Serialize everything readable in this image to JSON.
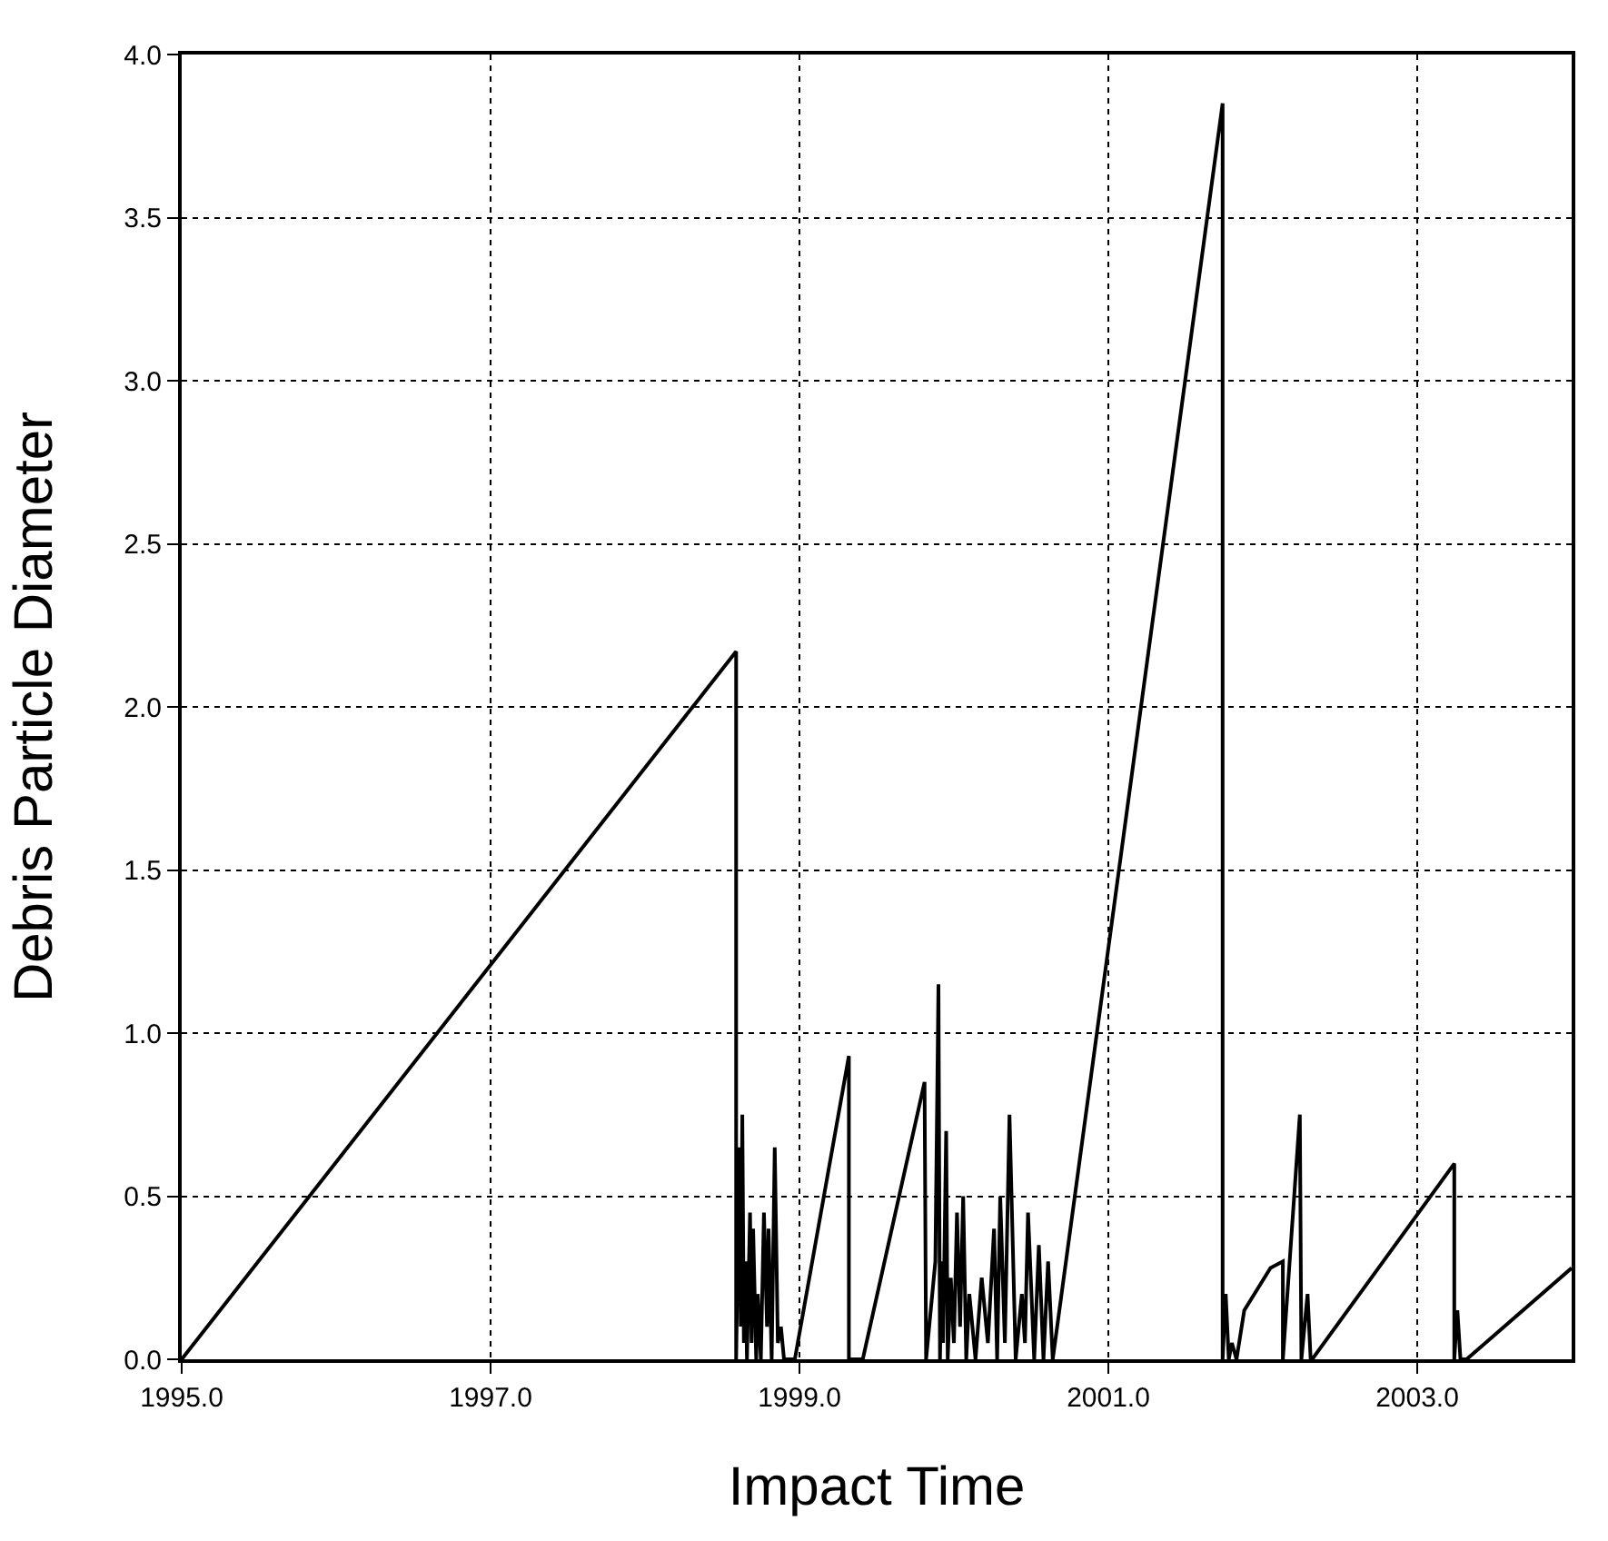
{
  "chart_data": {
    "type": "line",
    "xlabel": "Impact Time",
    "ylabel": "Debris Particle Diameter",
    "x": [
      1995.0,
      1998.59,
      1998.59,
      1998.61,
      1998.62,
      1998.63,
      1998.64,
      1998.65,
      1998.66,
      1998.68,
      1998.69,
      1998.7,
      1998.72,
      1998.73,
      1998.75,
      1998.77,
      1998.79,
      1998.8,
      1998.82,
      1998.84,
      1998.86,
      1998.88,
      1998.9,
      1998.97,
      1999.32,
      1999.32,
      1999.41,
      1999.81,
      1999.82,
      1999.88,
      1999.9,
      1999.91,
      1999.92,
      1999.93,
      1999.95,
      1999.96,
      1999.98,
      2000.0,
      2000.02,
      2000.04,
      2000.06,
      2000.08,
      2000.1,
      2000.14,
      2000.18,
      2000.22,
      2000.26,
      2000.28,
      2000.3,
      2000.33,
      2000.36,
      2000.4,
      2000.44,
      2000.46,
      2000.48,
      2000.52,
      2000.55,
      2000.58,
      2000.61,
      2000.64,
      2001.74,
      2001.74,
      2001.76,
      2001.78,
      2001.8,
      2001.83,
      2001.88,
      2002.05,
      2002.13,
      2002.13,
      2002.24,
      2002.25,
      2002.29,
      2002.31,
      2002.32,
      2003.24,
      2003.24,
      2003.26,
      2003.28,
      2003.32,
      2004.0
    ],
    "values": [
      0.0,
      2.17,
      0.0,
      0.65,
      0.1,
      0.75,
      0.05,
      0.3,
      0.0,
      0.45,
      0.05,
      0.4,
      0.0,
      0.2,
      0.0,
      0.45,
      0.1,
      0.4,
      0.0,
      0.65,
      0.05,
      0.1,
      0.0,
      0.0,
      0.93,
      0.0,
      0.0,
      0.85,
      0.0,
      0.3,
      1.15,
      0.0,
      0.3,
      0.05,
      0.7,
      0.0,
      0.25,
      0.05,
      0.45,
      0.1,
      0.5,
      0.0,
      0.2,
      0.0,
      0.25,
      0.05,
      0.4,
      0.0,
      0.5,
      0.05,
      0.75,
      0.0,
      0.2,
      0.05,
      0.45,
      0.0,
      0.35,
      0.0,
      0.3,
      0.0,
      3.85,
      0.0,
      0.2,
      0.0,
      0.05,
      0.0,
      0.15,
      0.28,
      0.3,
      0.0,
      0.75,
      0.0,
      0.2,
      0.0,
      0.0,
      0.6,
      0.0,
      0.15,
      0.0,
      0.0,
      0.28
    ],
    "color": "#000000",
    "line_style": "solid",
    "marker": "none",
    "grid": true,
    "legend": false,
    "xlim": [
      1995.0,
      2004.0
    ],
    "xticks": [
      {
        "value": 1995,
        "label": "1995.0"
      },
      {
        "value": 1997,
        "label": "1997.0"
      },
      {
        "value": 1999,
        "label": "1999.0"
      },
      {
        "value": 2001,
        "label": "2001.0"
      },
      {
        "value": 2003,
        "label": "2003.0"
      }
    ],
    "ylim": [
      0.0,
      4.0
    ],
    "yticks": [
      {
        "value": 0,
        "label": "0.0"
      },
      {
        "value": 0.5,
        "label": "0.5"
      },
      {
        "value": 1,
        "label": "1.0"
      },
      {
        "value": 1.5,
        "label": "1.5"
      },
      {
        "value": 2,
        "label": "2.0"
      },
      {
        "value": 2.5,
        "label": "2.5"
      },
      {
        "value": 3,
        "label": "3.0"
      },
      {
        "value": 3.5,
        "label": "3.5"
      },
      {
        "value": 4,
        "label": "4.0"
      }
    ]
  }
}
